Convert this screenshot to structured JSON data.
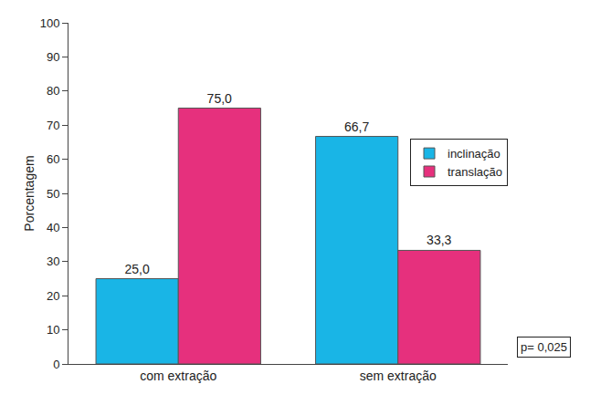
{
  "chart_data": {
    "type": "bar",
    "ylabel": "Porcentagem",
    "categories": [
      "com extração",
      "sem extração"
    ],
    "series": [
      {
        "name": "inclinação",
        "color": "#19b5e6",
        "values": [
          25.0,
          66.7
        ],
        "value_labels": [
          "25,0",
          "66,7"
        ]
      },
      {
        "name": "translação",
        "color": "#e6307d",
        "values": [
          75.0,
          33.3
        ],
        "value_labels": [
          "75,0",
          "33,3"
        ]
      }
    ],
    "ylim": [
      0,
      100
    ],
    "yticks": [
      0,
      10,
      20,
      30,
      40,
      50,
      60,
      70,
      80,
      90,
      100
    ],
    "grid": false,
    "legend": "upper right",
    "data_labels": true,
    "annotations": [
      {
        "text": "p= 0,025"
      }
    ]
  }
}
